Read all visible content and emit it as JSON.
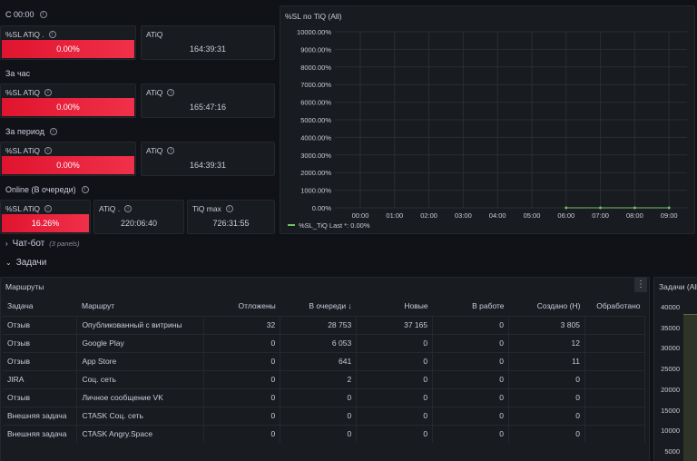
{
  "sections": {
    "since_midnight": "С 00:00",
    "per_hour": "За час",
    "per_period": "За период",
    "online": "Online (В очереди)",
    "chatbot": "Чат-бот",
    "chatbot_count": "(3 panels)",
    "tasks": "Задачи"
  },
  "stats": {
    "row1": {
      "sl_title": "%SL ATiQ .",
      "sl_value": "0.00%",
      "atiq_title": "ATiQ",
      "atiq_value": "164:39:31"
    },
    "row2": {
      "sl_title": "%SL ATiQ",
      "sl_value": "0.00%",
      "atiq_title": "ATiQ",
      "atiq_value": "165:47:16"
    },
    "row3": {
      "sl_title": "%SL ATiQ",
      "sl_value": "0.00%",
      "atiq_title": "ATiQ",
      "atiq_value": "164:39:31"
    },
    "row4": {
      "sl_title": "%SL ATiQ",
      "sl_value": "16.26%",
      "atiq_title": "ATiQ .",
      "atiq_value": "220:06:40",
      "tiq_title": "TiQ max",
      "tiq_value": "726:31:55"
    }
  },
  "chart_panel_title": "%SL по TiQ (All)",
  "chart_data": {
    "type": "line",
    "yticks": [
      "10000.00%",
      "9000.00%",
      "8000.00%",
      "7000.00%",
      "6000.00%",
      "5000.00%",
      "4000.00%",
      "3000.00%",
      "2000.00%",
      "1000.00%",
      "0.00%"
    ],
    "xticks": [
      "00:00",
      "01:00",
      "02:00",
      "03:00",
      "04:00",
      "05:00",
      "06:00",
      "07:00",
      "08:00",
      "09:00",
      "10:00"
    ],
    "ylim": [
      0,
      10000
    ],
    "series": [
      {
        "name": "%SL_TiQ",
        "color": "#73bf69",
        "x": [
          "06:00",
          "07:00",
          "08:00",
          "09:00"
        ],
        "y": [
          0,
          0,
          0,
          0
        ]
      }
    ],
    "legend_suffix": "Last *: 0.00%",
    "grid": true
  },
  "routes_panel": {
    "title": "Маршруты",
    "menu_icon": "kebab-menu-icon",
    "columns": [
      "Задача",
      "Маршрут",
      "Отложены",
      "В очереди",
      "Новые",
      "В работе",
      "Создано (Н)",
      "Обработано"
    ],
    "sort_icon": "↓",
    "rows": [
      [
        "Отзыв",
        "Опубликованный с витрины",
        "32",
        "28 753",
        "37 165",
        "0",
        "3 805",
        ""
      ],
      [
        "Отзыв",
        "Google Play",
        "0",
        "6 053",
        "0",
        "0",
        "12",
        ""
      ],
      [
        "Отзыв",
        "App Store",
        "0",
        "641",
        "0",
        "0",
        "11",
        ""
      ],
      [
        "JIRA",
        "Соц. сеть",
        "0",
        "2",
        "0",
        "0",
        "0",
        ""
      ],
      [
        "Отзыв",
        "Личное сообщение VK",
        "0",
        "0",
        "0",
        "0",
        "0",
        ""
      ],
      [
        "Внешняя задача",
        "CTASK Соц. сеть",
        "0",
        "0",
        "0",
        "0",
        "0",
        ""
      ],
      [
        "Внешняя задача",
        "CTASK Angry.Space",
        "0",
        "0",
        "0",
        "0",
        "0",
        ""
      ]
    ]
  },
  "tasks_panel": {
    "title": "Задачи (All)",
    "yticks": [
      "40000",
      "35000",
      "30000",
      "25000",
      "20000",
      "15000",
      "10000",
      "5000"
    ]
  }
}
